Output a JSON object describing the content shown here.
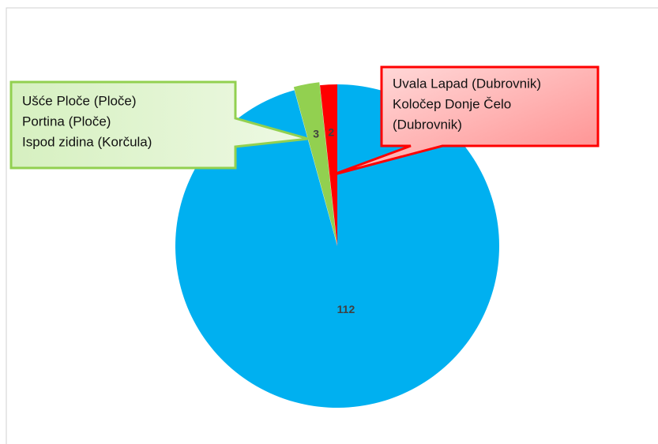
{
  "chart_data": {
    "type": "pie",
    "values": [
      112,
      3,
      2
    ],
    "colors": [
      "#00b0f0",
      "#92d050",
      "#ff0000"
    ],
    "annotations": [
      {
        "lines": [
          "Ušće Ploče (Ploče)",
          "Portina (Ploče)",
          "Ispod zidina (Korčula)"
        ]
      },
      {
        "lines": [
          "Uvala Lapad (Dubrovnik)",
          "Koločep Donje Čelo",
          "(Dubrovnik)"
        ]
      }
    ]
  }
}
